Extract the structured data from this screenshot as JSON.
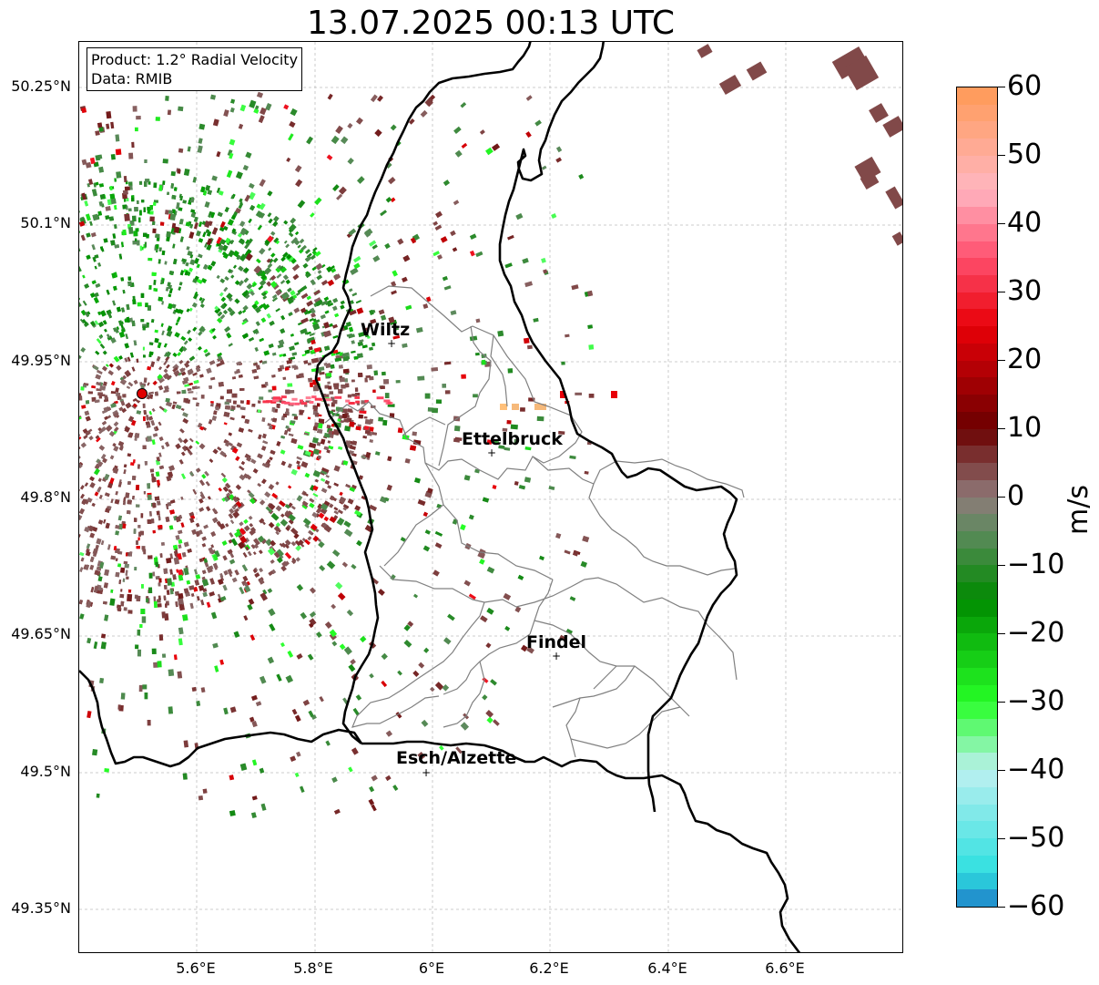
{
  "title": "13.07.2025 00:13 UTC",
  "info": {
    "product": "Product: 1.2° Radial Velocity",
    "data": "Data: RMIB"
  },
  "latitude_labels": [
    "50.25°N",
    "50.1°N",
    "49.95°N",
    "49.8°N",
    "49.65°N",
    "49.5°N",
    "49.35°N"
  ],
  "longitude_labels": [
    "5.6°E",
    "5.8°E",
    "6°E",
    "6.2°E",
    "6.4°E",
    "6.6°E"
  ],
  "cities": [
    {
      "name": "Wiltz",
      "marker": "+"
    },
    {
      "name": "Ettelbruck",
      "marker": "+"
    },
    {
      "name": "Findel",
      "marker": "+"
    },
    {
      "name": "Esch/Alzette",
      "marker": "+"
    }
  ],
  "colorbar": {
    "unit": "m/s",
    "min": -60,
    "max": 60,
    "tick_labels": [
      "60",
      "50",
      "40",
      "30",
      "20",
      "10",
      "0",
      "−10",
      "−20",
      "−30",
      "−40",
      "−50",
      "−60"
    ],
    "colors": {
      "velocity_60": "#ff9a55",
      "velocity_45": "#ffb6c1",
      "velocity_35": "#ff4f6e",
      "velocity_25": "#e80008",
      "velocity_10": "#6b0000",
      "velocity_0": "#8f7a7a",
      "velocity_minus_5": "#5e8a5e",
      "velocity_minus_15": "#008a00",
      "velocity_minus_30": "#26ff26",
      "velocity_minus_40": "#bdf0f0",
      "velocity_minus_55": "#2ee0e0",
      "velocity_minus_60": "#1e7bc8"
    }
  },
  "radar_site_color": "#e00000",
  "border_color": "#000000",
  "canton_border_color": "#808080",
  "grid_color": "#bfbfbf"
}
